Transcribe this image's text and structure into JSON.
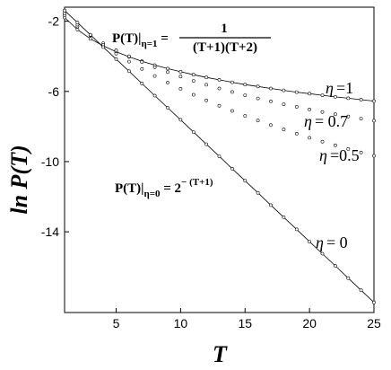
{
  "chart_data": {
    "type": "scatter",
    "title": "",
    "xlabel": "T",
    "ylabel": "ln P(T)",
    "xlim": [
      1,
      25
    ],
    "ylim": [
      -18.6,
      -1.2
    ],
    "x_ticks": [
      5,
      10,
      15,
      20,
      25
    ],
    "y_ticks": [
      -2,
      -6,
      -10,
      -14
    ],
    "grid": false,
    "annotations": {
      "eta1_formula": {
        "lhs": "P(T)|",
        "sub": "η=1",
        "eq": " = ",
        "num": "1",
        "den": "(T+1)(T+2)"
      },
      "eta0_formula": {
        "lhs": "P(T)|",
        "sub": "η=0",
        "eq": " = 2",
        "sup": "− (T+1)"
      }
    },
    "series": [
      {
        "name": "η =1",
        "label_value": "=1",
        "curve": true,
        "x": [
          1,
          2,
          3,
          4,
          5,
          6,
          7,
          8,
          9,
          10,
          11,
          12,
          13,
          14,
          15,
          16,
          17,
          18,
          19,
          20,
          21,
          22,
          23,
          24,
          25
        ],
        "y": [
          -1.79,
          -2.48,
          -3.0,
          -3.4,
          -3.74,
          -4.03,
          -4.28,
          -4.5,
          -4.7,
          -4.88,
          -5.05,
          -5.2,
          -5.34,
          -5.48,
          -5.61,
          -5.72,
          -5.83,
          -5.94,
          -6.04,
          -6.13,
          -6.22,
          -6.31,
          -6.39,
          -6.47,
          -6.55
        ]
      },
      {
        "name": "η = 0.7",
        "label_value": "= 0.7",
        "curve": false,
        "x": [
          1,
          2,
          3,
          4,
          5,
          6,
          7,
          8,
          9,
          10,
          11,
          12,
          13,
          14,
          15,
          16,
          17,
          18,
          19,
          20,
          21,
          22,
          23,
          24,
          25
        ],
        "y": [
          -1.65,
          -2.3,
          -2.8,
          -3.25,
          -3.65,
          -4.0,
          -4.32,
          -4.62,
          -4.9,
          -5.15,
          -5.4,
          -5.62,
          -5.83,
          -6.03,
          -6.22,
          -6.4,
          -6.57,
          -6.73,
          -6.88,
          -7.03,
          -7.17,
          -7.3,
          -7.43,
          -7.55,
          -7.67
        ]
      },
      {
        "name": "η =0.5",
        "label_value": "=0.5",
        "curve": false,
        "x": [
          1,
          2,
          3,
          4,
          5,
          6,
          7,
          8,
          9,
          10,
          11,
          12,
          13,
          14,
          15,
          16,
          17,
          18,
          19,
          20,
          21,
          22,
          23,
          24,
          25
        ],
        "y": [
          -1.55,
          -2.2,
          -2.8,
          -3.35,
          -3.85,
          -4.3,
          -4.72,
          -5.12,
          -5.5,
          -5.85,
          -6.19,
          -6.51,
          -6.82,
          -7.11,
          -7.39,
          -7.66,
          -7.92,
          -8.17,
          -8.41,
          -8.64,
          -8.86,
          -9.07,
          -9.28,
          -9.48,
          -9.67
        ]
      },
      {
        "name": "η = 0",
        "label_value": "= 0",
        "curve": true,
        "x": [
          1,
          2,
          3,
          4,
          5,
          6,
          7,
          8,
          9,
          10,
          11,
          12,
          13,
          14,
          15,
          16,
          17,
          18,
          19,
          20,
          21,
          22,
          23,
          24,
          25
        ],
        "y": [
          -1.39,
          -2.08,
          -2.77,
          -3.47,
          -4.16,
          -4.85,
          -5.55,
          -6.24,
          -6.93,
          -7.62,
          -8.32,
          -9.01,
          -9.7,
          -10.4,
          -11.09,
          -11.78,
          -12.48,
          -13.17,
          -13.86,
          -14.56,
          -15.25,
          -15.94,
          -16.64,
          -17.33,
          -18.02
        ]
      }
    ]
  }
}
